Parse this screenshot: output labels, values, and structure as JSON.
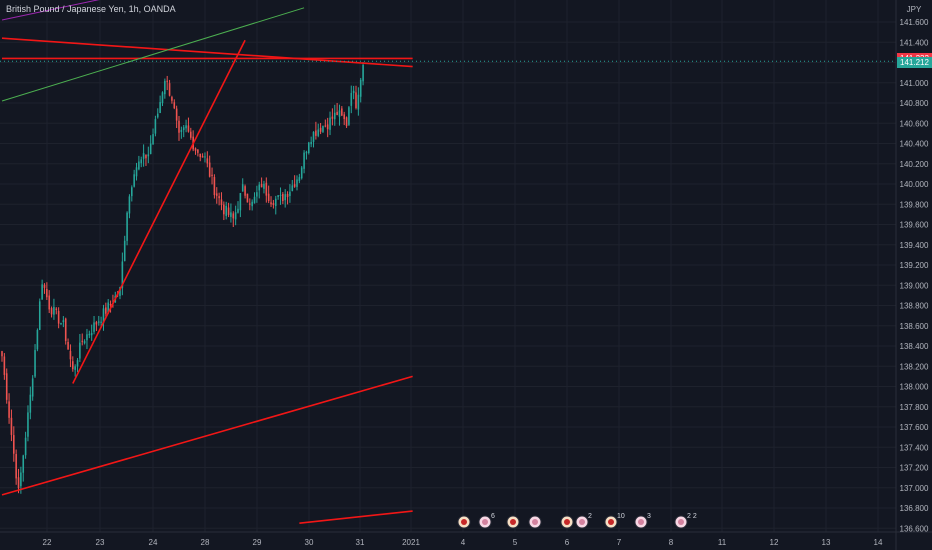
{
  "header": {
    "title": "British Pound / Japanese Yen, 1h, OANDA"
  },
  "price_axis": {
    "currency": "JPY",
    "current_price": "141.212",
    "level_price": "141.232"
  },
  "colors": {
    "background": "#131722",
    "grid": "#1e222d",
    "axis_text": "#b2b5be",
    "bull_candle": "#26a69a",
    "bear_candle": "#ef5350",
    "trendline_red": "#f21616",
    "trendline_green": "#4caf50",
    "trendline_purple": "#9c27b0",
    "current_price_tag": "#26a69a",
    "level_price_tag": "#f23645"
  },
  "chart_data": {
    "type": "candlestick",
    "x_tick_labels": [
      "22",
      "23",
      "24",
      "28",
      "29",
      "30",
      "31",
      "2021",
      "4",
      "5",
      "6",
      "7",
      "8",
      "11",
      "12",
      "13",
      "14"
    ],
    "y_tick_labels": [
      "141.600",
      "141.400",
      "141.200",
      "141.000",
      "140.800",
      "140.600",
      "140.400",
      "140.200",
      "140.000",
      "139.800",
      "139.600",
      "139.400",
      "139.200",
      "139.000",
      "138.800",
      "138.600",
      "138.400",
      "138.200",
      "138.000",
      "137.800",
      "137.600",
      "137.400",
      "137.200",
      "137.000",
      "136.800",
      "136.600"
    ],
    "ylim": [
      136.5,
      141.7
    ],
    "candle_count": 174,
    "key_closes": [
      {
        "x": 0,
        "close": 138.3
      },
      {
        "x": 7,
        "close": 136.95
      },
      {
        "x": 12,
        "close": 137.9
      },
      {
        "x": 17,
        "close": 139.05
      },
      {
        "x": 20,
        "close": 138.8
      },
      {
        "x": 26,
        "close": 138.6
      },
      {
        "x": 30,
        "close": 138.15
      },
      {
        "x": 34,
        "close": 138.45
      },
      {
        "x": 44,
        "close": 138.75
      },
      {
        "x": 50,
        "close": 138.95
      },
      {
        "x": 53,
        "close": 139.75
      },
      {
        "x": 56,
        "close": 140.15
      },
      {
        "x": 62,
        "close": 140.3
      },
      {
        "x": 66,
        "close": 140.7
      },
      {
        "x": 69,
        "close": 141.05
      },
      {
        "x": 72,
        "close": 140.85
      },
      {
        "x": 75,
        "close": 140.45
      },
      {
        "x": 78,
        "close": 140.55
      },
      {
        "x": 82,
        "close": 140.35
      },
      {
        "x": 86,
        "close": 140.25
      },
      {
        "x": 90,
        "close": 139.95
      },
      {
        "x": 94,
        "close": 139.75
      },
      {
        "x": 98,
        "close": 139.65
      },
      {
        "x": 102,
        "close": 139.95
      },
      {
        "x": 106,
        "close": 139.8
      },
      {
        "x": 110,
        "close": 140.0
      },
      {
        "x": 114,
        "close": 139.85
      },
      {
        "x": 118,
        "close": 139.85
      },
      {
        "x": 122,
        "close": 139.95
      },
      {
        "x": 126,
        "close": 140.1
      },
      {
        "x": 130,
        "close": 140.45
      },
      {
        "x": 134,
        "close": 140.55
      },
      {
        "x": 138,
        "close": 140.6
      },
      {
        "x": 142,
        "close": 140.7
      },
      {
        "x": 146,
        "close": 140.6
      },
      {
        "x": 148,
        "close": 140.95
      },
      {
        "x": 150,
        "close": 140.8
      },
      {
        "x": 153,
        "close": 141.2
      }
    ],
    "trendlines": [
      {
        "name": "",
        "color": "red",
        "from": {
          "x": 0,
          "price": 141.44
        },
        "to": {
          "x": 174,
          "price": 141.16
        }
      },
      {
        "name": "",
        "color": "red",
        "from": {
          "x": 0,
          "price": 141.24
        },
        "to": {
          "x": 174,
          "price": 141.24
        }
      },
      {
        "name": "",
        "color": "red",
        "from": {
          "x": 30,
          "price": 138.03
        },
        "to": {
          "x": 103,
          "price": 141.42
        }
      },
      {
        "name": "",
        "color": "red",
        "from": {
          "x": 0,
          "price": 136.93
        },
        "to": {
          "x": 174,
          "price": 138.1
        }
      },
      {
        "name": "",
        "color": "red",
        "from": {
          "x": 126,
          "price": 136.65
        },
        "to": {
          "x": 174,
          "price": 136.77
        }
      },
      {
        "name": "",
        "color": "green",
        "from": {
          "x": 0,
          "price": 140.82
        },
        "to": {
          "x": 128,
          "price": 141.74
        }
      },
      {
        "name": "",
        "color": "purple",
        "from": {
          "x": 0,
          "price": 141.62
        },
        "to": {
          "x": 45,
          "price": 141.84
        }
      }
    ],
    "events": [
      {
        "type": "event",
        "count": ""
      },
      {
        "type": "dividend",
        "count": "6"
      },
      {
        "type": "event",
        "count": ""
      },
      {
        "type": "dividend",
        "count": ""
      },
      {
        "type": "event",
        "count": ""
      },
      {
        "type": "dividend",
        "count": "2"
      },
      {
        "type": "event",
        "count": "10"
      },
      {
        "type": "dividend",
        "count": "3"
      },
      {
        "type": "dividend",
        "count": "2 2"
      }
    ],
    "grid": true,
    "legend": "none"
  }
}
